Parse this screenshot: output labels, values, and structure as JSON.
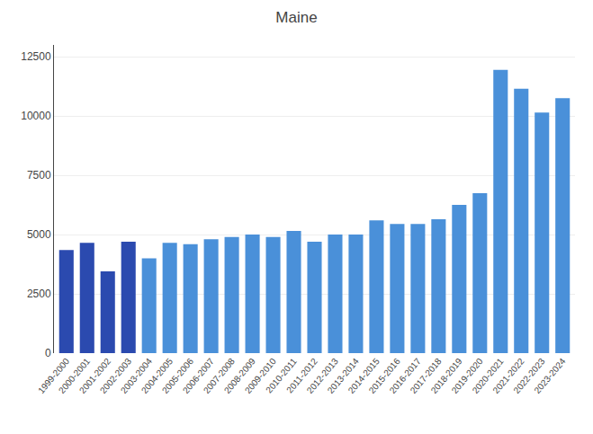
{
  "chart_data": {
    "type": "bar",
    "title": "Maine",
    "categories": [
      "1999-2000",
      "2000-2001",
      "2001-2002",
      "2002-2003",
      "2003-2004",
      "2004-2005",
      "2005-2006",
      "2006-2007",
      "2007-2008",
      "2008-2009",
      "2009-2010",
      "2010-2011",
      "2011-2012",
      "2012-2013",
      "2013-2014",
      "2014-2015",
      "2015-2016",
      "2016-2017",
      "2017-2018",
      "2018-2019",
      "2019-2020",
      "2020-2021",
      "2021-2022",
      "2022-2023",
      "2023-2024"
    ],
    "values": [
      4350,
      4650,
      3450,
      4700,
      4000,
      4650,
      4600,
      4800,
      4900,
      5000,
      4900,
      5150,
      4700,
      5000,
      5000,
      5600,
      5450,
      5450,
      5650,
      6250,
      6750,
      11950,
      11150,
      10150,
      10750
    ],
    "colors": [
      "#2b4aaf",
      "#2b4aaf",
      "#2b4aaf",
      "#2b4aaf",
      "#4a90d9",
      "#4a90d9",
      "#4a90d9",
      "#4a90d9",
      "#4a90d9",
      "#4a90d9",
      "#4a90d9",
      "#4a90d9",
      "#4a90d9",
      "#4a90d9",
      "#4a90d9",
      "#4a90d9",
      "#4a90d9",
      "#4a90d9",
      "#4a90d9",
      "#4a90d9",
      "#4a90d9",
      "#4a90d9",
      "#4a90d9",
      "#4a90d9",
      "#4a90d9"
    ],
    "ylim": [
      0,
      13000
    ],
    "yticks": [
      0,
      2500,
      5000,
      7500,
      10000,
      12500
    ],
    "grid": true
  }
}
